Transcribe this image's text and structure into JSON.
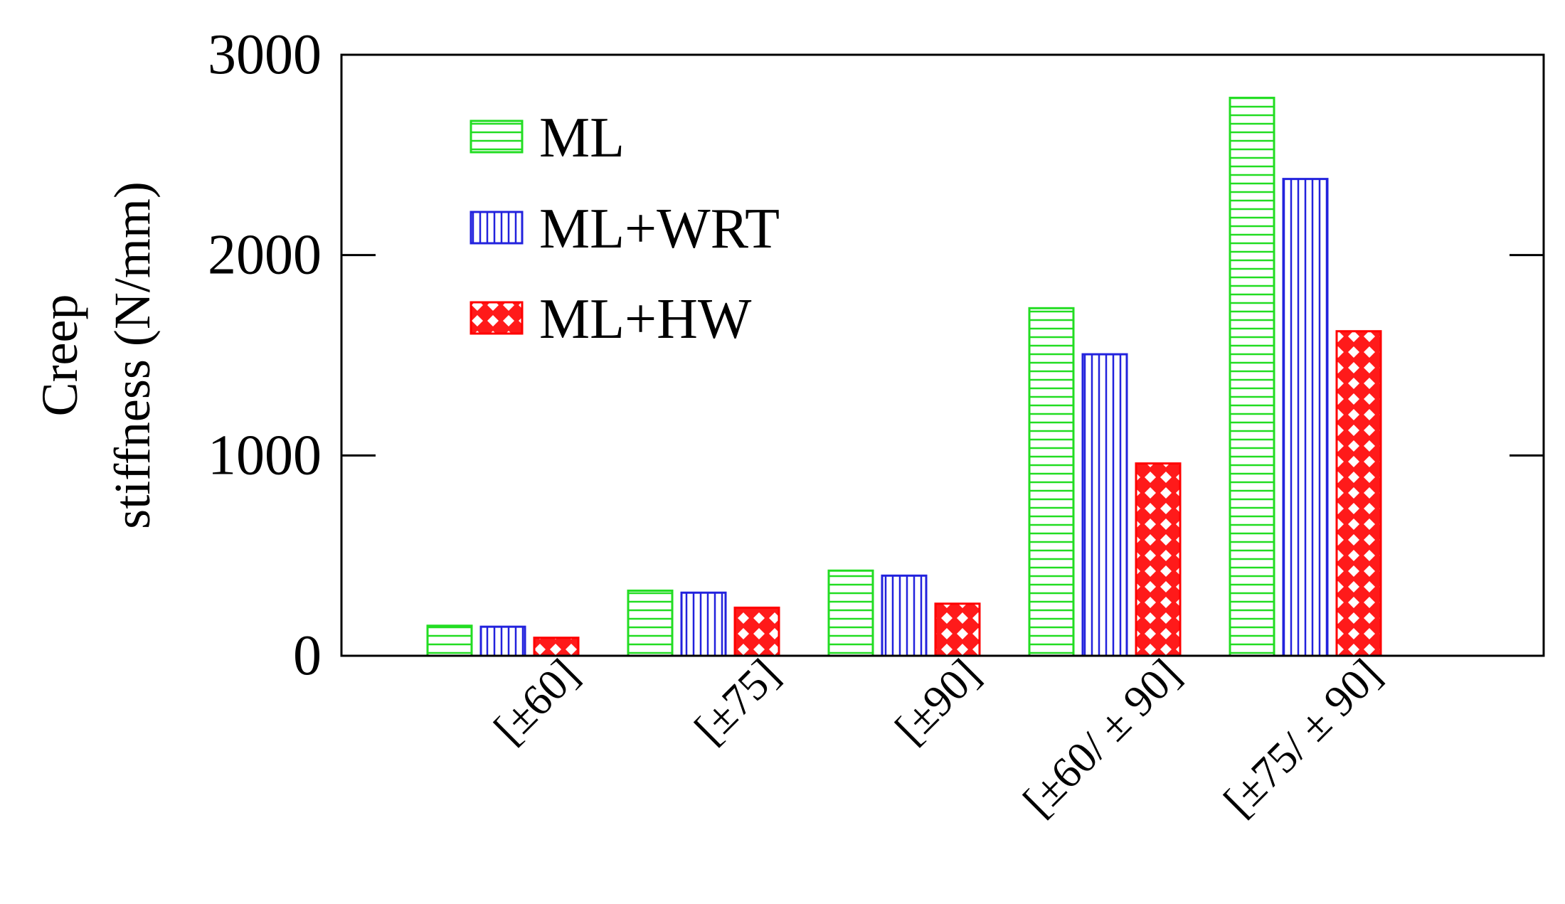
{
  "chart_data": {
    "type": "bar",
    "title": "",
    "xlabel": "",
    "ylabel_lines": [
      "Creep",
      "stiffness (N/mm)"
    ],
    "ylim": [
      0,
      3000
    ],
    "yticks": [
      0,
      1000,
      2000,
      3000
    ],
    "ytick_labels": [
      "0",
      "1000",
      "2000",
      "3000"
    ],
    "categories": [
      "[±60]",
      "[±75]",
      "[±90]",
      "[±60/ ± 90]",
      "[±75/ ± 90]"
    ],
    "series": [
      {
        "name": "ML",
        "color": "#22dd22",
        "pattern": "horizontal-lines",
        "values": [
          150,
          325,
          425,
          1735,
          2785
        ]
      },
      {
        "name": "ML+WRT",
        "color": "#2222dd",
        "pattern": "vertical-lines",
        "values": [
          145,
          315,
          400,
          1505,
          2380
        ]
      },
      {
        "name": "ML+HW",
        "color": "#ff0000",
        "pattern": "diamond-checker",
        "values": [
          90,
          240,
          260,
          960,
          1620
        ]
      }
    ],
    "legend": {
      "position": "top-left"
    },
    "grid": false
  }
}
